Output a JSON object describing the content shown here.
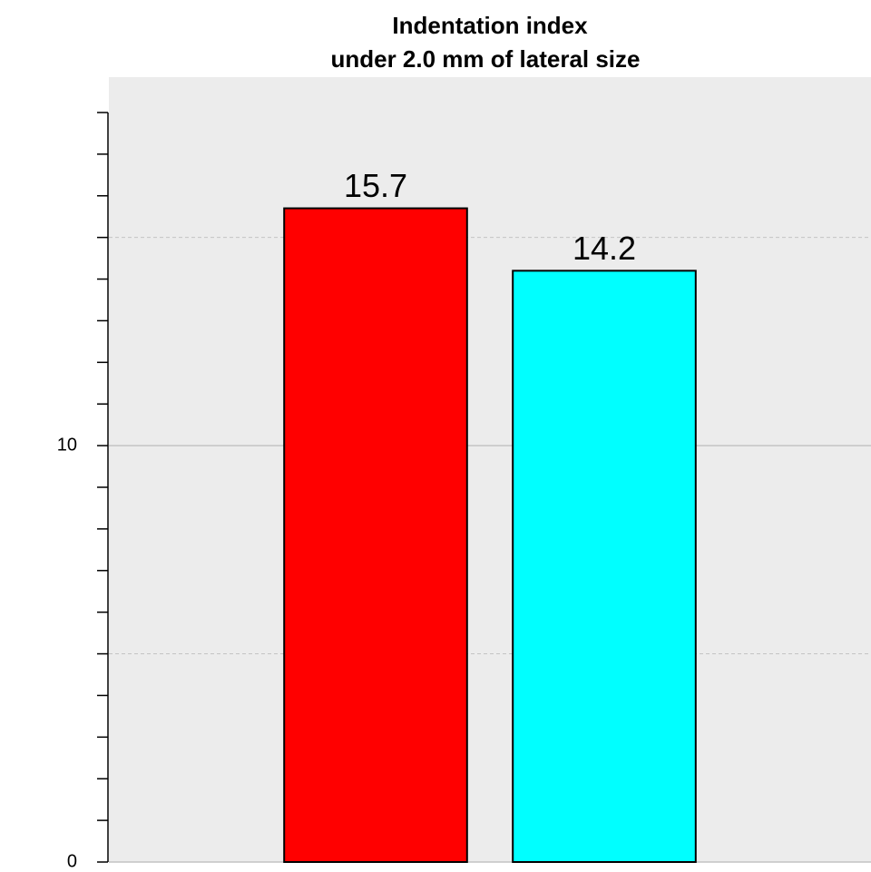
{
  "chart_data": {
    "type": "bar",
    "title": [
      "Indentation index",
      "under 2.0 mm of lateral size"
    ],
    "categories": [
      null,
      null
    ],
    "values": [
      15.7,
      14.2
    ],
    "colors": [
      "#ff0000",
      "#00ffff"
    ],
    "ylim": [
      0,
      18.85
    ],
    "yticks": [
      0,
      10
    ],
    "minor_yticks": [
      0,
      1,
      2,
      3,
      4,
      5,
      6,
      7,
      8,
      9,
      10,
      11,
      12,
      13,
      14,
      15,
      16,
      17,
      18
    ],
    "dashed_grid": [
      5,
      15
    ],
    "grid": true
  }
}
